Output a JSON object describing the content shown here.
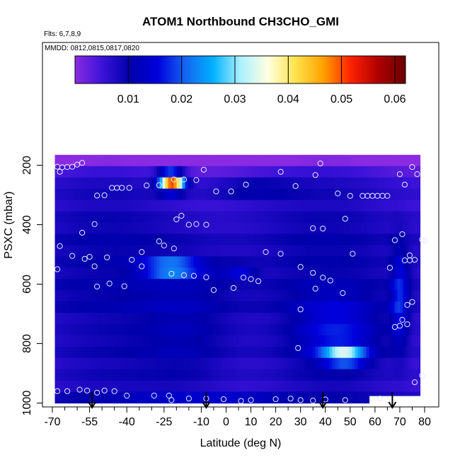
{
  "chart_data": {
    "type": "heatmap",
    "title": "ATOM1 Northbound CH3CHO_GMI",
    "flights_label": "Flts: 6,7,8,9",
    "dates_label": "MMDD: 0812,0815,0817,0820",
    "xlabel": "Latitude (deg N)",
    "ylabel": "PSXC (mbar)",
    "xlim": [
      -70,
      80
    ],
    "ylim": [
      1000,
      150
    ],
    "xticks": [
      -70,
      -55,
      -40,
      -25,
      -10,
      0,
      10,
      20,
      30,
      40,
      50,
      60,
      70,
      80
    ],
    "xtick_labels": [
      "-70",
      "-55",
      "-40",
      "-25",
      "-10",
      "0",
      "10",
      "20",
      "30",
      "40",
      "50",
      "60",
      "70",
      "80"
    ],
    "x_minor_ticks": [
      -65,
      -60,
      -50,
      -45,
      -35,
      -30,
      -20,
      -15,
      -5,
      5,
      15,
      25,
      35,
      45,
      55,
      65,
      75
    ],
    "yticks": [
      200,
      400,
      600,
      800,
      1000
    ],
    "ytick_labels": [
      "200",
      "400",
      "600",
      "800",
      "1000"
    ],
    "colorbar": {
      "min": 0,
      "max": 0.062,
      "ticks": [
        0.01,
        0.02,
        0.03,
        0.04,
        0.05,
        0.06
      ],
      "tick_labels": [
        "0.01",
        "0.02",
        "0.03",
        "0.04",
        "0.05",
        "0.06"
      ],
      "colors": [
        "#8a2be2",
        "#3a12d8",
        "#0000aa",
        "#0000dd",
        "#1565f0",
        "#00b0ff",
        "#aaf0ff",
        "#ffffe0",
        "#ffe34d",
        "#ffa200",
        "#ff2200",
        "#b00000",
        "#6a0000"
      ]
    },
    "data_extent": {
      "x": [
        -69,
        78
      ],
      "p_top": 165,
      "p_bottom_south": 1000,
      "p_bottom_north": 975
    },
    "background_value": 0.008,
    "features": [
      {
        "x": -70,
        "p": 190,
        "sx": 400,
        "sp": 25,
        "v": -0.009
      },
      {
        "x": -22,
        "p": 255,
        "sx": 3.5,
        "sp": 22,
        "v": 0.045
      },
      {
        "x": -22,
        "p": 545,
        "sx": 8,
        "sp": 12,
        "v": 0.042
      },
      {
        "x": -2,
        "p": 550,
        "sx": 6,
        "sp": 12,
        "v": 0.004
      },
      {
        "x": 6,
        "p": 550,
        "sx": 4,
        "sp": 10,
        "v": 0.016
      },
      {
        "x": 48,
        "p": 840,
        "sx": 6,
        "sp": 20,
        "v": 0.022
      },
      {
        "x": 45,
        "p": 760,
        "sx": 12,
        "sp": 80,
        "v": 0.008
      },
      {
        "x": 10,
        "p": 280,
        "sx": 12,
        "sp": 30,
        "v": 0.005
      },
      {
        "x": 70,
        "p": 650,
        "sx": 2.5,
        "sp": 120,
        "v": 0.01
      },
      {
        "x": -15,
        "p": 750,
        "sx": 14,
        "sp": 170,
        "v": 0.005
      },
      {
        "x": 5,
        "p": 990,
        "sx": 15,
        "sp": 12,
        "v": 0.005
      },
      {
        "x": -20,
        "p": 985,
        "sx": 20,
        "sp": 10,
        "v": 0.003
      }
    ],
    "banding": [
      0.0,
      0.6,
      -0.4,
      0.3,
      -0.7,
      0.5,
      -0.2,
      0.8,
      -0.5,
      0.1,
      -0.8,
      0.4,
      -0.3,
      0.7,
      -0.6,
      0.2,
      -0.1,
      0.9,
      -0.4,
      0.3,
      -0.9,
      0.6
    ],
    "obs_points": [
      [
        -68,
        205
      ],
      [
        -66,
        207
      ],
      [
        -64,
        206
      ],
      [
        -62,
        205
      ],
      [
        -60,
        198
      ],
      [
        -58,
        192
      ],
      [
        -67,
        222
      ],
      [
        -52,
        302
      ],
      [
        -49,
        301
      ],
      [
        -46,
        276
      ],
      [
        -44,
        276
      ],
      [
        -42,
        276
      ],
      [
        -39,
        276
      ],
      [
        -32,
        268
      ],
      [
        -27,
        267
      ],
      [
        -21,
        248
      ],
      [
        -17,
        248
      ],
      [
        -12,
        250
      ],
      [
        -9,
        215
      ],
      [
        -4,
        288
      ],
      [
        2,
        288
      ],
      [
        8,
        265
      ],
      [
        22,
        222
      ],
      [
        28,
        270
      ],
      [
        36,
        233
      ],
      [
        38,
        194
      ],
      [
        45,
        295
      ],
      [
        50,
        303
      ],
      [
        55,
        303
      ],
      [
        57,
        303
      ],
      [
        59,
        303
      ],
      [
        61,
        303
      ],
      [
        63,
        303
      ],
      [
        65,
        303
      ],
      [
        70,
        230
      ],
      [
        72,
        265
      ],
      [
        75,
        206
      ],
      [
        77,
        230
      ],
      [
        -53,
        398
      ],
      [
        -58,
        427
      ],
      [
        -20,
        382
      ],
      [
        -18,
        370
      ],
      [
        -15,
        400
      ],
      [
        -12,
        398
      ],
      [
        -8,
        400
      ],
      [
        -67,
        472
      ],
      [
        -62,
        505
      ],
      [
        -57,
        515
      ],
      [
        -55,
        508
      ],
      [
        -48,
        510
      ],
      [
        -38,
        518
      ],
      [
        -34,
        492
      ],
      [
        -27,
        456
      ],
      [
        -25,
        470
      ],
      [
        -21,
        480
      ],
      [
        16,
        492
      ],
      [
        22,
        498
      ],
      [
        35,
        412
      ],
      [
        39,
        413
      ],
      [
        48,
        380
      ],
      [
        51,
        498
      ],
      [
        68,
        452
      ],
      [
        71,
        432
      ],
      [
        74,
        503
      ],
      [
        76,
        518
      ],
      [
        79,
        450
      ],
      [
        80,
        454
      ],
      [
        -53,
        540
      ],
      [
        -34,
        540
      ],
      [
        -22,
        565
      ],
      [
        -17,
        570
      ],
      [
        -13,
        572
      ],
      [
        -8,
        577
      ],
      [
        7,
        578
      ],
      [
        10,
        583
      ],
      [
        13,
        590
      ],
      [
        -5,
        620
      ],
      [
        3,
        613
      ],
      [
        30,
        542
      ],
      [
        35,
        562
      ],
      [
        39,
        578
      ],
      [
        42,
        588
      ],
      [
        47,
        630
      ],
      [
        66,
        545
      ],
      [
        72,
        520
      ],
      [
        74,
        520
      ],
      [
        -68,
        550
      ],
      [
        -52,
        608
      ],
      [
        -47,
        598
      ],
      [
        -41,
        607
      ],
      [
        36,
        615
      ],
      [
        30,
        685
      ],
      [
        68,
        744
      ],
      [
        70,
        740
      ],
      [
        73,
        670
      ],
      [
        75,
        660
      ],
      [
        71,
        720
      ],
      [
        73,
        735
      ],
      [
        76,
        930
      ],
      [
        79,
        907
      ],
      [
        29,
        815
      ],
      [
        48,
        822
      ],
      [
        -68,
        960
      ],
      [
        -64,
        960
      ],
      [
        -59,
        955
      ],
      [
        -56,
        958
      ],
      [
        -52,
        965
      ],
      [
        -49,
        958
      ],
      [
        -45,
        960
      ],
      [
        -40,
        975
      ],
      [
        -29,
        975
      ],
      [
        -23,
        975
      ],
      [
        -22,
        990
      ],
      [
        -15,
        985
      ],
      [
        -8,
        985
      ],
      [
        -1,
        987
      ],
      [
        6,
        993
      ],
      [
        10,
        990
      ],
      [
        20,
        987
      ],
      [
        26,
        985
      ],
      [
        30,
        990
      ],
      [
        35,
        992
      ],
      [
        40,
        988
      ],
      [
        48,
        990
      ],
      [
        62,
        985
      ]
    ],
    "arrows_x": [
      -54,
      -8,
      39,
      67
    ]
  }
}
